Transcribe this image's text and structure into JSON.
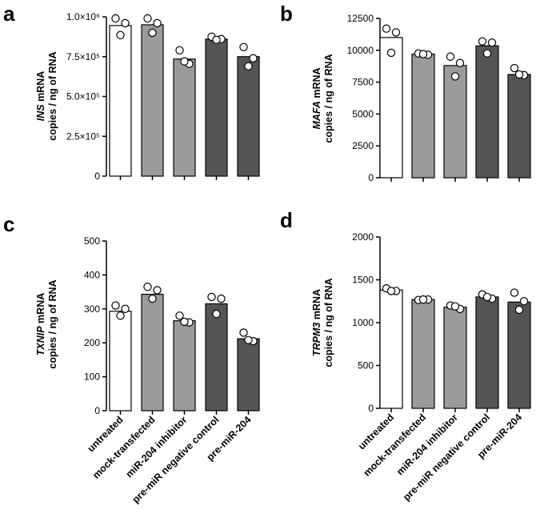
{
  "categories": [
    "untreated",
    "mock-transfected",
    "miR-204 inhibitor",
    "pre-miR negative control",
    "pre-miR-204"
  ],
  "colors": {
    "untreated": "#ffffff",
    "mock-transfected": "#9a9a9a",
    "miR-204 inhibitor": "#9a9a9a",
    "pre-miR negative control": "#555555",
    "pre-miR-204": "#555555",
    "point_fill": "#ffffff",
    "outline": "#000000"
  },
  "chart_data": [
    {
      "panel": "a",
      "type": "bar",
      "ylabel_gene": "INS",
      "ylabel_rest": " mRNA",
      "ylabel_line2": "copies / ng of RNA",
      "ylim": [
        0,
        1000000
      ],
      "yticks": [
        0,
        250000,
        500000,
        750000,
        1000000
      ],
      "ytick_labels": [
        "0",
        "2.5×10⁵",
        "5.0×10⁵",
        "7.5×10⁵",
        "1.0×10⁶"
      ],
      "values": [
        945000,
        950000,
        735000,
        860000,
        750000
      ],
      "points": [
        [
          990000,
          960000,
          885000
        ],
        [
          990000,
          960000,
          900000
        ],
        [
          790000,
          705000,
          720000
        ],
        [
          875000,
          860000,
          855000
        ],
        [
          810000,
          740000,
          690000
        ]
      ]
    },
    {
      "panel": "b",
      "type": "bar",
      "ylabel_gene": "MAFA",
      "ylabel_rest": " mRNA",
      "ylabel_line2": "copies / ng of RNA",
      "ylim": [
        0,
        12500
      ],
      "yticks": [
        0,
        2500,
        5000,
        7500,
        10000,
        12500
      ],
      "ytick_labels": [
        "0",
        "2500",
        "5000",
        "7500",
        "10000",
        "12500"
      ],
      "values": [
        11000,
        9700,
        8800,
        10350,
        8100
      ],
      "points": [
        [
          11700,
          11400,
          9800
        ],
        [
          9750,
          9650,
          9700
        ],
        [
          9500,
          9000,
          7950
        ],
        [
          10700,
          10600,
          9750
        ],
        [
          8600,
          8050,
          8100
        ]
      ]
    },
    {
      "panel": "c",
      "type": "bar",
      "ylabel_gene": "TXNIP",
      "ylabel_rest": " mRNA",
      "ylabel_line2": "copies / ng of RNA",
      "ylim": [
        0,
        500
      ],
      "yticks": [
        0,
        100,
        200,
        300,
        400,
        500
      ],
      "ytick_labels": [
        "0",
        "100",
        "200",
        "300",
        "400",
        "500"
      ],
      "values": [
        293,
        343,
        265,
        315,
        212
      ],
      "points": [
        [
          310,
          300,
          280
        ],
        [
          365,
          355,
          330
        ],
        [
          280,
          260,
          262
        ],
        [
          335,
          330,
          285
        ],
        [
          230,
          205,
          208
        ]
      ],
      "show_categories": true
    },
    {
      "panel": "d",
      "type": "bar",
      "ylabel_gene": "TRPM3",
      "ylabel_rest": " mRNA",
      "ylabel_line2": "copies / ng of RNA",
      "ylim": [
        0,
        2000
      ],
      "yticks": [
        0,
        500,
        1000,
        1500,
        2000
      ],
      "ytick_labels": [
        "0",
        "500",
        "1000",
        "1500",
        "2000"
      ],
      "values": [
        1380,
        1270,
        1180,
        1300,
        1240
      ],
      "points": [
        [
          1400,
          1370,
          1370
        ],
        [
          1265,
          1270,
          1270
        ],
        [
          1200,
          1160,
          1190
        ],
        [
          1330,
          1280,
          1300
        ],
        [
          1350,
          1250,
          1150
        ]
      ],
      "show_categories": true
    }
  ]
}
